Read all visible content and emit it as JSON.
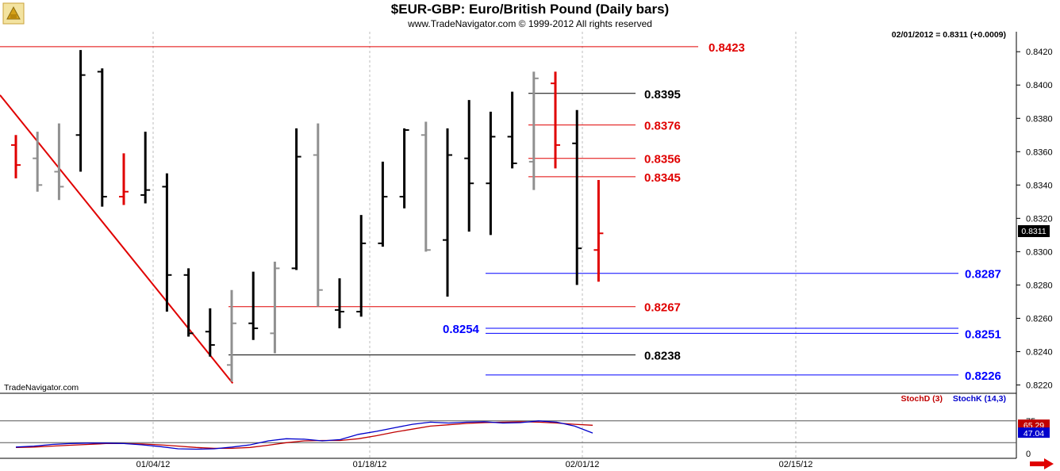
{
  "chart_data": {
    "type": "ohlc",
    "title": "$EUR-GBP:  Euro/British Pound  (Daily bars)",
    "subtitle": "www.TradeNavigator.com © 1999-2012 All rights reserved",
    "readout": "02/01/2012 = 0.8311 (+0.0009)",
    "watermark": "TradeNavigator.com",
    "last_price_label": "0.8311",
    "y_ticks": [
      "0.8420",
      "0.8400",
      "0.8380",
      "0.8360",
      "0.8340",
      "0.8320",
      "0.8300",
      "0.8280",
      "0.8260",
      "0.8240",
      "0.8220"
    ],
    "x_ticks": [
      "01/04/12",
      "01/18/12",
      "02/01/12",
      "02/15/12"
    ],
    "ylim": [
      0.8215,
      0.8432
    ],
    "bars": [
      {
        "high": 0.837,
        "low": 0.8344,
        "open": 0.8364,
        "close": 0.8352,
        "color": "red"
      },
      {
        "high": 0.8372,
        "low": 0.8336,
        "open": 0.8356,
        "close": 0.834,
        "color": "gray"
      },
      {
        "high": 0.8377,
        "low": 0.8331,
        "open": 0.8348,
        "close": 0.8339,
        "color": "gray"
      },
      {
        "high": 0.8421,
        "low": 0.8348,
        "open": 0.837,
        "close": 0.8406,
        "color": "black"
      },
      {
        "high": 0.841,
        "low": 0.8327,
        "open": 0.8408,
        "close": 0.8333,
        "color": "black"
      },
      {
        "high": 0.8359,
        "low": 0.8328,
        "open": 0.8333,
        "close": 0.8336,
        "color": "red"
      },
      {
        "high": 0.8372,
        "low": 0.8329,
        "open": 0.8334,
        "close": 0.8337,
        "color": "black"
      },
      {
        "high": 0.8347,
        "low": 0.8264,
        "open": 0.8339,
        "close": 0.8286,
        "color": "black"
      },
      {
        "high": 0.829,
        "low": 0.8249,
        "open": 0.8286,
        "close": 0.8251,
        "color": "black"
      },
      {
        "high": 0.8266,
        "low": 0.8237,
        "open": 0.8252,
        "close": 0.8244,
        "color": "black"
      },
      {
        "high": 0.8277,
        "low": 0.8222,
        "open": 0.8232,
        "close": 0.8257,
        "color": "gray"
      },
      {
        "high": 0.8288,
        "low": 0.8247,
        "open": 0.8257,
        "close": 0.8254,
        "color": "black"
      },
      {
        "high": 0.8294,
        "low": 0.8239,
        "open": 0.8251,
        "close": 0.829,
        "color": "gray"
      },
      {
        "high": 0.8374,
        "low": 0.8289,
        "open": 0.829,
        "close": 0.8357,
        "color": "black"
      },
      {
        "high": 0.8377,
        "low": 0.8267,
        "open": 0.8358,
        "close": 0.8277,
        "color": "gray"
      },
      {
        "high": 0.8284,
        "low": 0.8254,
        "open": 0.8265,
        "close": 0.8264,
        "color": "black"
      },
      {
        "high": 0.8322,
        "low": 0.8261,
        "open": 0.8264,
        "close": 0.8305,
        "color": "black"
      },
      {
        "high": 0.8354,
        "low": 0.8303,
        "open": 0.8305,
        "close": 0.8333,
        "color": "black"
      },
      {
        "high": 0.8374,
        "low": 0.8326,
        "open": 0.8333,
        "close": 0.8373,
        "color": "black"
      },
      {
        "high": 0.8378,
        "low": 0.83,
        "open": 0.837,
        "close": 0.8301,
        "color": "gray"
      },
      {
        "high": 0.8374,
        "low": 0.8273,
        "open": 0.8307,
        "close": 0.8358,
        "color": "black"
      },
      {
        "high": 0.8391,
        "low": 0.8312,
        "open": 0.8356,
        "close": 0.8341,
        "color": "black"
      },
      {
        "high": 0.8384,
        "low": 0.831,
        "open": 0.8341,
        "close": 0.8369,
        "color": "black"
      },
      {
        "high": 0.8396,
        "low": 0.835,
        "open": 0.8369,
        "close": 0.8353,
        "color": "black"
      },
      {
        "high": 0.8408,
        "low": 0.8337,
        "open": 0.8354,
        "close": 0.8404,
        "color": "gray"
      },
      {
        "high": 0.8408,
        "low": 0.835,
        "open": 0.8401,
        "close": 0.8364,
        "color": "red"
      },
      {
        "high": 0.8385,
        "low": 0.828,
        "open": 0.8365,
        "close": 0.8302,
        "color": "black"
      },
      {
        "high": 0.8343,
        "low": 0.8282,
        "open": 0.8301,
        "close": 0.8311,
        "color": "red"
      }
    ],
    "levels": [
      {
        "value": 0.8423,
        "label": "0.8423",
        "color": "#e00000"
      },
      {
        "value": 0.8395,
        "label": "0.8395",
        "color": "#000000"
      },
      {
        "value": 0.8376,
        "label": "0.8376",
        "color": "#e00000"
      },
      {
        "value": 0.8356,
        "label": "0.8356",
        "color": "#e00000"
      },
      {
        "value": 0.8345,
        "label": "0.8345",
        "color": "#e00000"
      },
      {
        "value": 0.8287,
        "label": "0.8287",
        "color": "#0000ff"
      },
      {
        "value": 0.8267,
        "label": "0.8267",
        "color": "#e00000"
      },
      {
        "value": 0.8254,
        "label": "0.8254",
        "color": "#0000ff"
      },
      {
        "value": 0.8251,
        "label": "0.8251",
        "color": "#0000ff"
      },
      {
        "value": 0.8238,
        "label": "0.8238",
        "color": "#000000"
      },
      {
        "value": 0.8226,
        "label": "0.8226",
        "color": "#0000ff"
      }
    ],
    "trendline": {
      "color": "#e00000"
    },
    "stochastic": {
      "legend_d": "StochD (3)",
      "legend_k": "StochK (14,3)",
      "ylim": [
        0,
        100
      ],
      "y_ticks": [
        "75",
        "0"
      ],
      "label_d": "65.29",
      "label_k": "47.04",
      "d_values": [
        14,
        15,
        17,
        19,
        21,
        23,
        23,
        22,
        20,
        17,
        14,
        12,
        12,
        14,
        19,
        25,
        29,
        30,
        30,
        34,
        41,
        49,
        56,
        63,
        66,
        69,
        71,
        72,
        73,
        72,
        70,
        67,
        65
      ],
      "k_values": [
        15,
        17,
        21,
        23,
        24,
        24,
        23,
        20,
        16,
        11,
        10,
        11,
        15,
        20,
        29,
        34,
        33,
        29,
        32,
        44,
        51,
        59,
        67,
        72,
        70,
        72,
        73,
        70,
        71,
        75,
        72,
        63,
        47
      ]
    },
    "colors": {
      "red": "#e00000",
      "black": "#000000",
      "gray": "#909090",
      "blue": "#0000ff",
      "dark_red": "#c00000"
    }
  }
}
